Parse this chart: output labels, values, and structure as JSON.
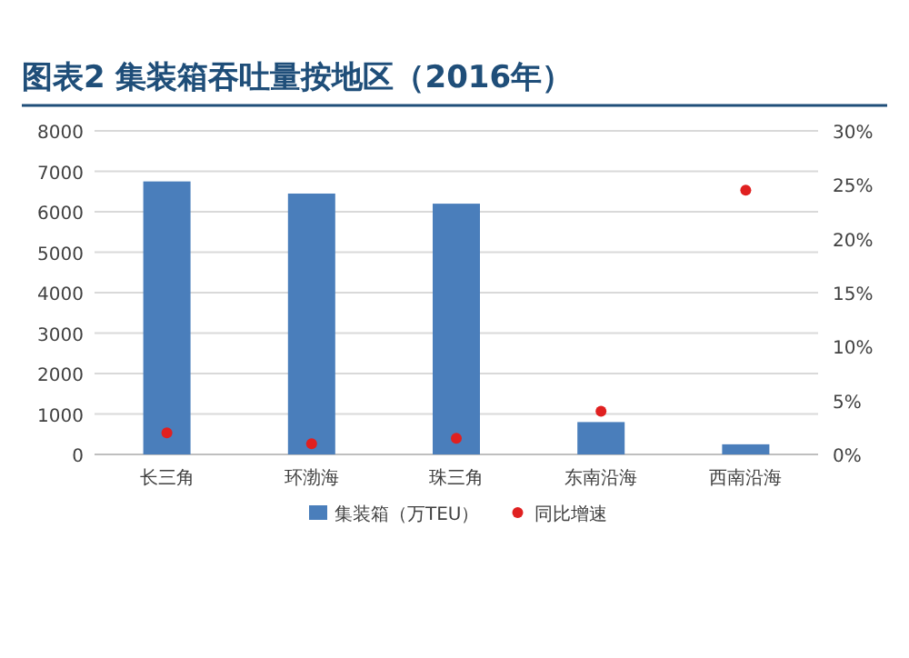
{
  "chart_data": {
    "type": "bar",
    "title": "图表2  集装箱吞吐量按地区（2016年）",
    "categories": [
      "长三角",
      "环渤海",
      "珠三角",
      "东南沿海",
      "西南沿海"
    ],
    "series": [
      {
        "name": "集装箱（万TEU）",
        "color": "#4a7ebb",
        "values": [
          6750,
          6450,
          6200,
          800,
          250
        ]
      },
      {
        "name": "同比增速",
        "type": "scatter",
        "axis": "y2",
        "marker": "circle",
        "color": "#e02020",
        "values": [
          2,
          1,
          1.5,
          4,
          24.5
        ]
      }
    ],
    "ylim": [
      0,
      8000
    ],
    "yticks": [
      0,
      1000,
      2000,
      3000,
      4000,
      5000,
      6000,
      7000,
      8000
    ],
    "y2lim": [
      0,
      30
    ],
    "y2ticks": [
      {
        "value": 0,
        "label": "0%"
      },
      {
        "value": 5,
        "label": "5%"
      },
      {
        "value": 10,
        "label": "10%"
      },
      {
        "value": 15,
        "label": "15%"
      },
      {
        "value": 20,
        "label": "20%"
      },
      {
        "value": 25,
        "label": "25%"
      },
      {
        "value": 30,
        "label": "30%"
      }
    ],
    "grid": "y",
    "legend": "bottom"
  }
}
